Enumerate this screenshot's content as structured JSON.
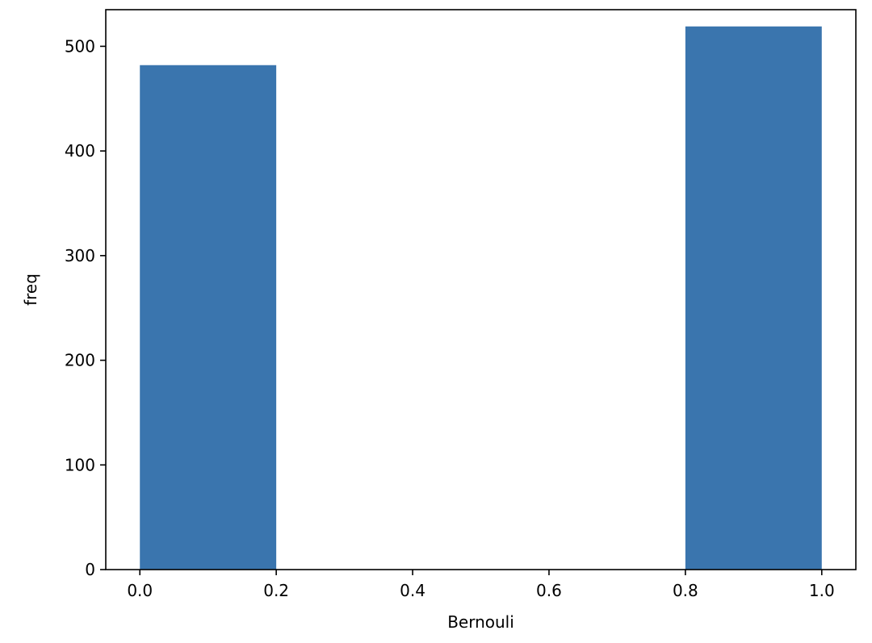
{
  "chart_data": {
    "type": "bar",
    "xlabel": "Bernouli",
    "ylabel": "freq",
    "xlim": [
      -0.05,
      1.05
    ],
    "ylim": [
      0,
      535
    ],
    "grid": false,
    "bar_color": "#3a75ae",
    "bars": [
      {
        "x0": 0.0,
        "x1": 0.2,
        "value": 482
      },
      {
        "x0": 0.8,
        "x1": 1.0,
        "value": 519
      }
    ],
    "xticks": [
      {
        "value": 0.0,
        "label": "0.0"
      },
      {
        "value": 0.2,
        "label": "0.2"
      },
      {
        "value": 0.4,
        "label": "0.4"
      },
      {
        "value": 0.6,
        "label": "0.6"
      },
      {
        "value": 0.8,
        "label": "0.8"
      },
      {
        "value": 1.0,
        "label": "1.0"
      }
    ],
    "yticks": [
      {
        "value": 0,
        "label": "0"
      },
      {
        "value": 100,
        "label": "100"
      },
      {
        "value": 200,
        "label": "200"
      },
      {
        "value": 300,
        "label": "300"
      },
      {
        "value": 400,
        "label": "400"
      },
      {
        "value": 500,
        "label": "500"
      }
    ]
  }
}
